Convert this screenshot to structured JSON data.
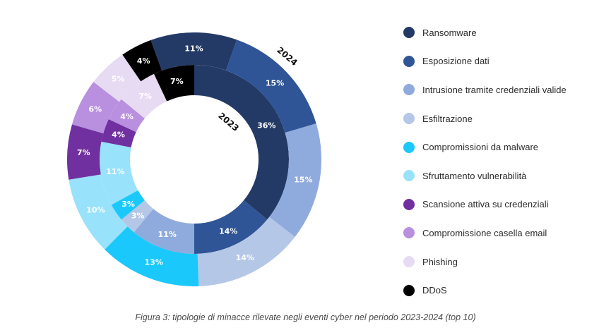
{
  "chart_data": {
    "type": "donut",
    "rings": [
      {
        "name": "2023",
        "values": [
          36,
          14,
          11,
          3,
          3,
          11,
          4,
          4,
          7,
          7
        ],
        "labels": [
          "36%",
          "14%",
          "11%",
          "3%",
          "3%",
          "11%",
          "4%",
          "4%",
          "7%",
          "7%"
        ]
      },
      {
        "name": "2024",
        "values": [
          11,
          15,
          15,
          14,
          13,
          10,
          7,
          6,
          5,
          4
        ],
        "labels": [
          "11%",
          "15%",
          "15%",
          "14%",
          "13%",
          "10%",
          "7%",
          "6%",
          "5%",
          "4%"
        ]
      }
    ],
    "categories": [
      "Ransomware",
      "Esposizione dati",
      "Intrusione tramite credenziali valide",
      "Esfiltrazione",
      "Compromissioni da malware",
      "Sfruttamento vulnerabilità",
      "Scansione attiva su credenziali",
      "Compromissione casella email",
      "Phishing",
      "DDoS"
    ],
    "colors": [
      "#233a66",
      "#2f5597",
      "#8faadc",
      "#b4c7e7",
      "#1ac8fc",
      "#99e2fb",
      "#7030a0",
      "#b98fe0",
      "#e7dbf4",
      "#000000"
    ],
    "label_colors": [
      "#ffffff",
      "#ffffff",
      "#ffffff",
      "#ffffff",
      "#ffffff",
      "#ffffff",
      "#ffffff",
      "#ffffff",
      "#ffffff",
      "#ffffff"
    ],
    "legend_position": "right"
  },
  "legend": {
    "items": [
      {
        "label": "Ransomware",
        "color": "#233a66"
      },
      {
        "label": "Esposizione dati",
        "color": "#2f5597"
      },
      {
        "label": "Intrusione tramite credenziali valide",
        "color": "#8faadc"
      },
      {
        "label": "Esfiltrazione",
        "color": "#b4c7e7"
      },
      {
        "label": "Compromissioni da malware",
        "color": "#1ac8fc"
      },
      {
        "label": "Sfruttamento vulnerabilità",
        "color": "#99e2fb"
      },
      {
        "label": "Scansione attiva su credenziali",
        "color": "#7030a0"
      },
      {
        "label": "Compromissione casella email",
        "color": "#b98fe0"
      },
      {
        "label": "Phishing",
        "color": "#e7dbf4"
      },
      {
        "label": "DDoS",
        "color": "#000000"
      }
    ]
  },
  "caption": "Figura 3: tipologie di minacce rilevate negli eventi cyber nel periodo 2023-2024 (top 10)"
}
